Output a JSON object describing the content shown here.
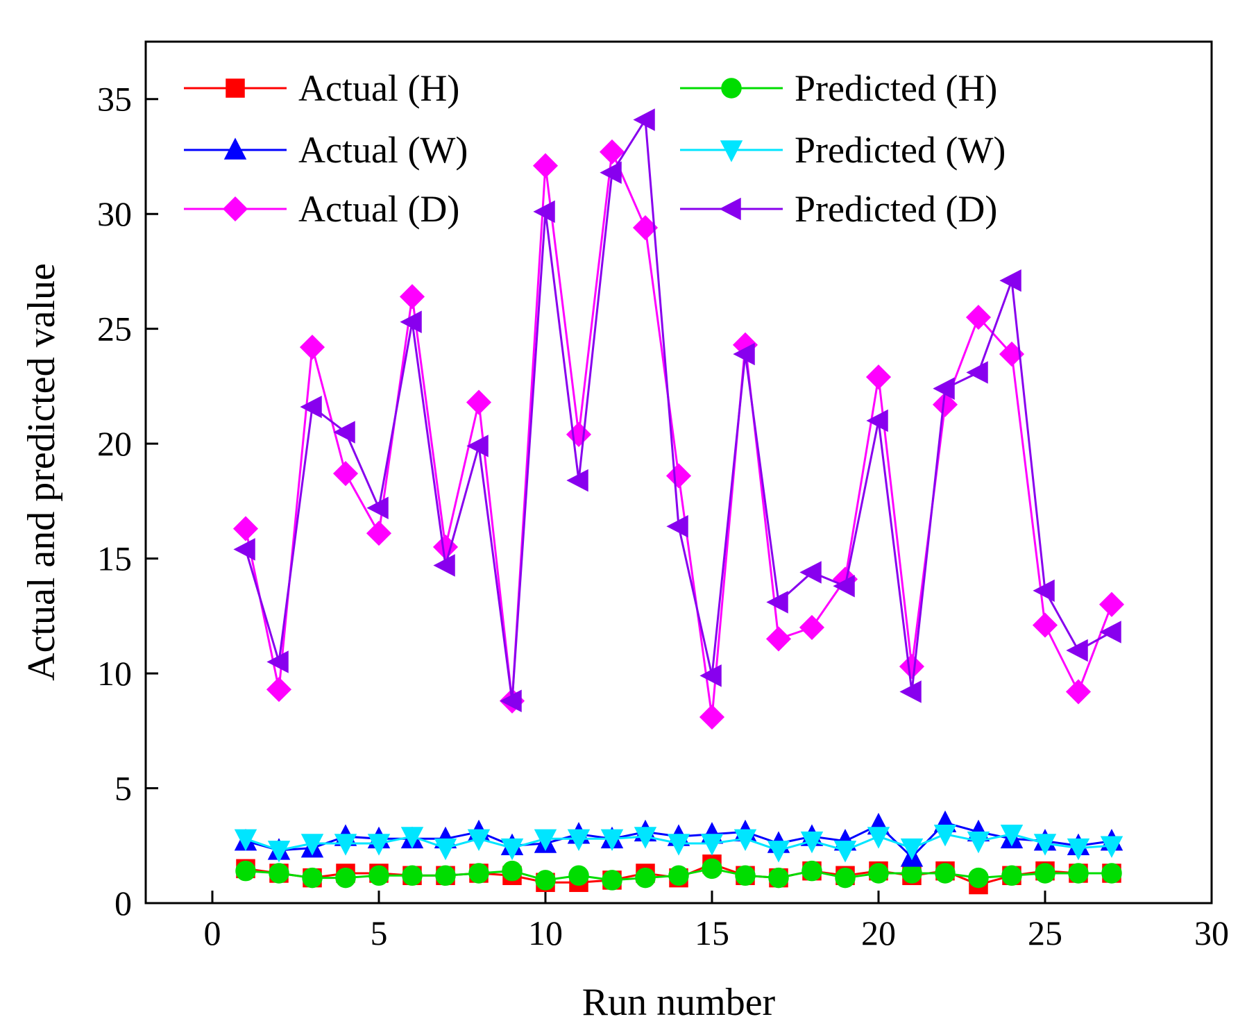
{
  "chart_data": {
    "type": "line",
    "title": "",
    "xlabel": "Run number",
    "ylabel": "Actual and predicted value",
    "xlim": [
      -2,
      30
    ],
    "ylim": [
      0,
      37.5
    ],
    "xticks": [
      0,
      5,
      10,
      15,
      20,
      25,
      30
    ],
    "yticks": [
      0,
      5,
      10,
      15,
      20,
      25,
      30,
      35
    ],
    "grid": false,
    "legend_position": "top, two columns",
    "x": [
      1,
      2,
      3,
      4,
      5,
      6,
      7,
      8,
      9,
      10,
      11,
      12,
      13,
      14,
      15,
      16,
      17,
      18,
      19,
      20,
      21,
      22,
      23,
      24,
      25,
      26,
      27
    ],
    "series": [
      {
        "name": "Actual (H)",
        "color": "#ff0000",
        "marker": "square",
        "values": [
          1.5,
          1.3,
          1.1,
          1.3,
          1.3,
          1.2,
          1.2,
          1.3,
          1.2,
          0.9,
          0.9,
          1.0,
          1.3,
          1.1,
          1.7,
          1.2,
          1.1,
          1.4,
          1.2,
          1.4,
          1.2,
          1.4,
          0.8,
          1.2,
          1.4,
          1.3,
          1.3
        ]
      },
      {
        "name": "Actual (W)",
        "color": "#0000ff",
        "marker": "triangle-up",
        "values": [
          2.7,
          2.3,
          2.4,
          2.9,
          2.8,
          2.8,
          2.8,
          3.1,
          2.5,
          2.6,
          3.0,
          2.8,
          3.1,
          2.9,
          3.0,
          3.1,
          2.6,
          2.9,
          2.7,
          3.4,
          2.0,
          3.5,
          3.1,
          2.8,
          2.7,
          2.5,
          2.7
        ]
      },
      {
        "name": "Actual (D)",
        "color": "#ff00ff",
        "marker": "diamond",
        "values": [
          16.3,
          9.3,
          24.2,
          18.7,
          16.1,
          26.4,
          15.5,
          21.8,
          8.8,
          32.1,
          20.4,
          32.7,
          29.4,
          18.6,
          8.1,
          24.3,
          11.5,
          12.0,
          14.1,
          22.9,
          10.3,
          21.7,
          25.5,
          23.9,
          12.1,
          9.2,
          13.0
        ]
      },
      {
        "name": "Predicted (H)",
        "color": "#00dd00",
        "marker": "circle",
        "values": [
          1.4,
          1.3,
          1.1,
          1.1,
          1.2,
          1.2,
          1.2,
          1.3,
          1.4,
          1.0,
          1.2,
          1.0,
          1.1,
          1.2,
          1.5,
          1.2,
          1.1,
          1.4,
          1.1,
          1.3,
          1.3,
          1.3,
          1.1,
          1.2,
          1.3,
          1.3,
          1.3
        ]
      },
      {
        "name": "Predicted (W)",
        "color": "#00e5ff",
        "marker": "triangle-down",
        "values": [
          2.8,
          2.3,
          2.6,
          2.6,
          2.6,
          2.9,
          2.4,
          2.8,
          2.4,
          2.8,
          2.8,
          2.8,
          2.9,
          2.6,
          2.6,
          2.8,
          2.3,
          2.7,
          2.3,
          2.9,
          2.4,
          3.0,
          2.7,
          3.0,
          2.6,
          2.4,
          2.5
        ]
      },
      {
        "name": "Predicted (D)",
        "color": "#8800ee",
        "marker": "triangle-left",
        "values": [
          15.4,
          10.5,
          21.6,
          20.5,
          17.2,
          25.3,
          14.7,
          19.9,
          8.8,
          30.1,
          18.4,
          31.8,
          34.1,
          16.4,
          9.9,
          23.9,
          13.1,
          14.4,
          13.8,
          21.0,
          9.2,
          22.4,
          23.1,
          27.1,
          13.6,
          11.0,
          11.8
        ]
      }
    ]
  }
}
